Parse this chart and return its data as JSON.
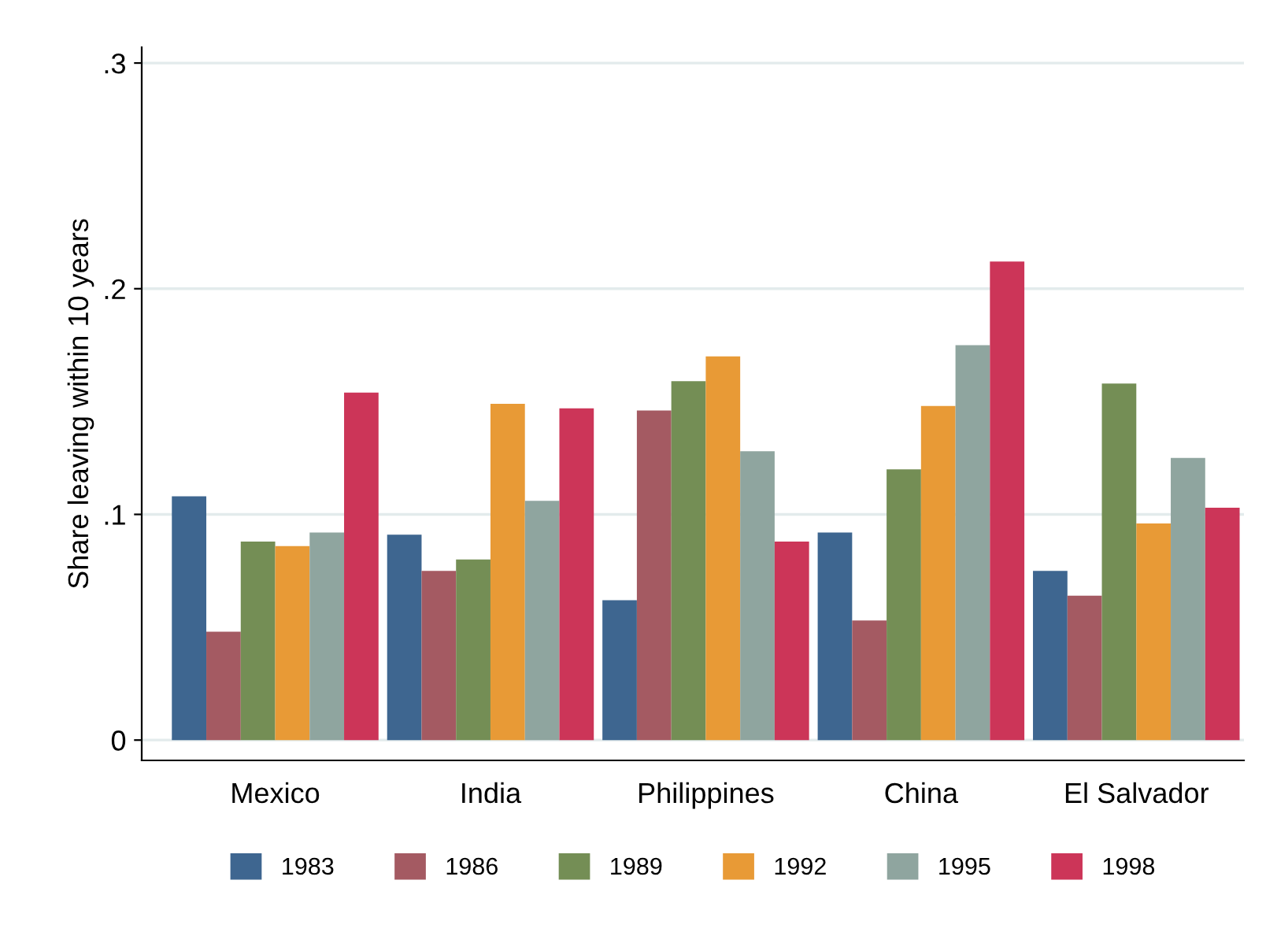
{
  "chart_data": {
    "type": "bar",
    "ylabel": "Share leaving within 10 years",
    "categories": [
      "Mexico",
      "India",
      "Philippines",
      "China",
      "El Salvador"
    ],
    "series": [
      {
        "name": "1983",
        "color": "#3e6690",
        "values": [
          0.108,
          0.091,
          0.062,
          0.092,
          0.075
        ]
      },
      {
        "name": "1986",
        "color": "#a45a62",
        "values": [
          0.048,
          0.075,
          0.146,
          0.053,
          0.064
        ]
      },
      {
        "name": "1989",
        "color": "#748e55",
        "values": [
          0.088,
          0.08,
          0.159,
          0.12,
          0.158
        ]
      },
      {
        "name": "1992",
        "color": "#e89a36",
        "values": [
          0.086,
          0.149,
          0.17,
          0.148,
          0.096
        ]
      },
      {
        "name": "1995",
        "color": "#8fa59f",
        "values": [
          0.092,
          0.106,
          0.128,
          0.175,
          0.125
        ]
      },
      {
        "name": "1998",
        "color": "#cc3558",
        "values": [
          0.154,
          0.147,
          0.088,
          0.212,
          0.103
        ]
      }
    ],
    "ylim": [
      -0.009,
      0.307
    ],
    "yticks": [
      {
        "value": 0,
        "label": "0"
      },
      {
        "value": 0.1,
        "label": ".1"
      },
      {
        "value": 0.2,
        "label": ".2"
      },
      {
        "value": 0.3,
        "label": ".3"
      }
    ],
    "grid": "y",
    "legend": "bottom"
  }
}
